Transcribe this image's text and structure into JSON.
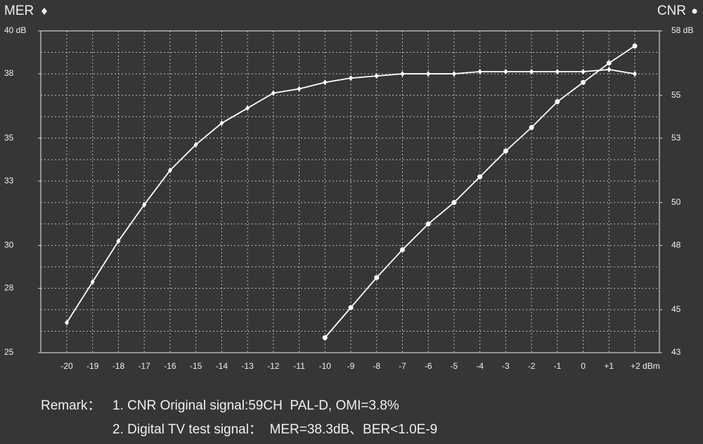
{
  "chart_data": {
    "type": "line",
    "categories": [
      "-20",
      "-19",
      "-18",
      "-17",
      "-16",
      "-15",
      "-14",
      "-13",
      "-12",
      "-11",
      "-10",
      "-9",
      "-8",
      "-7",
      "-6",
      "-5",
      "-4",
      "-3",
      "-2",
      "-1",
      "0",
      "+1",
      "+2 dBm"
    ],
    "series": [
      {
        "name": "MER",
        "color": "#ffffff",
        "marker": "diamond",
        "values": [
          26.4,
          28.3,
          30.2,
          31.9,
          33.5,
          34.7,
          35.7,
          36.4,
          37.1,
          37.3,
          37.6,
          37.8,
          37.9,
          38.0,
          38.0,
          38.0,
          38.1,
          38.1,
          38.1,
          38.1,
          38.1,
          38.2,
          38.0
        ]
      },
      {
        "name": "CNR",
        "color": "#ffffff",
        "marker": "circle",
        "axis": "y2",
        "values": [
          null,
          null,
          null,
          null,
          null,
          null,
          null,
          null,
          null,
          null,
          43.7,
          45.1,
          46.5,
          47.8,
          49.0,
          50.0,
          51.2,
          52.4,
          53.5,
          54.7,
          55.6,
          56.5,
          57.3
        ]
      }
    ],
    "ylim": [
      25,
      40
    ],
    "yticks": [
      25,
      28,
      30,
      33,
      35,
      38,
      {
        "value": 40,
        "label": "40 dB"
      }
    ],
    "y2lim": [
      43,
      58
    ],
    "y2ticks": [
      43,
      45,
      48,
      50,
      53,
      55,
      {
        "value": 58,
        "label": "58 dB"
      }
    ],
    "ygrid": [
      26,
      27,
      28,
      29,
      30,
      31,
      32,
      33,
      34,
      35,
      36,
      37,
      38,
      39
    ],
    "grid": true,
    "remarks": [
      "Remark：",
      "1. CNR Original signal:59CH  PAL-D, OMI=3.8%",
      "2. Digital TV test signal：  MER=38.3dB、BER<1.0E-9"
    ]
  }
}
